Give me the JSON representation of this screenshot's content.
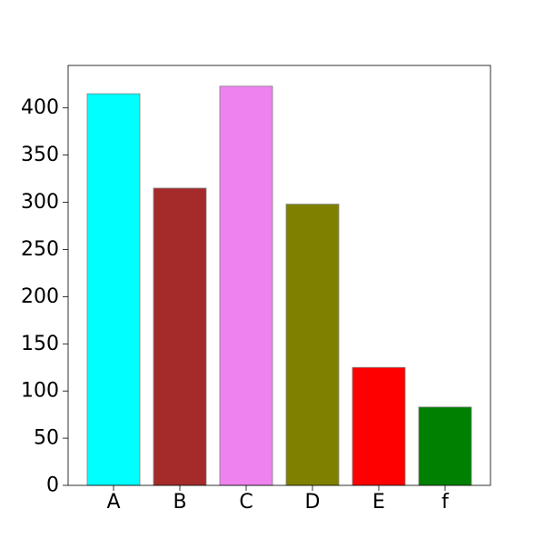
{
  "chart_data": {
    "type": "bar",
    "title": "",
    "xlabel": "",
    "ylabel": "",
    "categories": [
      "A",
      "B",
      "C",
      "D",
      "E",
      "f"
    ],
    "values": [
      415,
      315,
      423,
      298,
      125,
      83
    ],
    "colors": [
      "#00ffff",
      "#a52a2a",
      "#ee82ee",
      "#808000",
      "#ff0000",
      "#008000"
    ],
    "bar_edge_color": "#808080",
    "ylim": [
      0,
      445
    ],
    "yticks": [
      0,
      50,
      100,
      150,
      200,
      250,
      300,
      350,
      400
    ],
    "grid": false,
    "legend": "none"
  }
}
